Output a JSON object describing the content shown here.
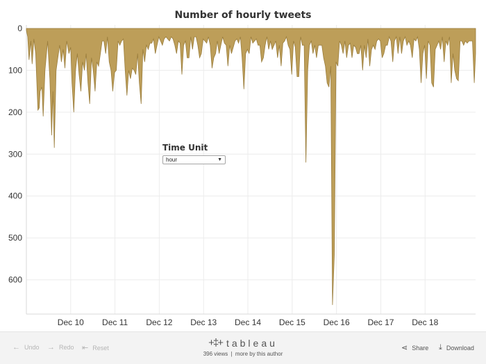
{
  "chart_data": {
    "type": "area",
    "title": "Number of hourly tweets",
    "y_axis": {
      "ticks": [
        0,
        100,
        200,
        300,
        400,
        500,
        600
      ],
      "range": [
        0,
        690
      ],
      "reversed": true
    },
    "x_axis": {
      "ticks": [
        "Dec 10",
        "Dec 11",
        "Dec 12",
        "Dec 13",
        "Dec 14",
        "Dec 15",
        "Dec 16",
        "Dec 17",
        "Dec 18"
      ],
      "unit": "hour"
    },
    "grid": true,
    "fill_color": "#bd9e59",
    "series": [
      {
        "points": [
          [
            9.0,
            5
          ],
          [
            9.03,
            20
          ],
          [
            9.06,
            75
          ],
          [
            9.1,
            30
          ],
          [
            9.13,
            85
          ],
          [
            9.17,
            25
          ],
          [
            9.21,
            60
          ],
          [
            9.26,
            195
          ],
          [
            9.29,
            190
          ],
          [
            9.31,
            150
          ],
          [
            9.35,
            140
          ],
          [
            9.38,
            210
          ],
          [
            9.42,
            100
          ],
          [
            9.48,
            30
          ],
          [
            9.53,
            120
          ],
          [
            9.57,
            255
          ],
          [
            9.6,
            150
          ],
          [
            9.63,
            285
          ],
          [
            9.67,
            100
          ],
          [
            9.71,
            70
          ],
          [
            9.75,
            40
          ],
          [
            9.79,
            80
          ],
          [
            9.83,
            50
          ],
          [
            9.87,
            95
          ],
          [
            9.91,
            30
          ],
          [
            9.96,
            60
          ],
          [
            10.0,
            45
          ],
          [
            10.03,
            130
          ],
          [
            10.07,
            200
          ],
          [
            10.11,
            100
          ],
          [
            10.15,
            60
          ],
          [
            10.19,
            110
          ],
          [
            10.23,
            150
          ],
          [
            10.27,
            80
          ],
          [
            10.31,
            100
          ],
          [
            10.35,
            60
          ],
          [
            10.39,
            130
          ],
          [
            10.43,
            180
          ],
          [
            10.47,
            70
          ],
          [
            10.51,
            100
          ],
          [
            10.55,
            150
          ],
          [
            10.59,
            80
          ],
          [
            10.63,
            90
          ],
          [
            10.67,
            60
          ],
          [
            10.71,
            30
          ],
          [
            10.75,
            30
          ],
          [
            10.79,
            60
          ],
          [
            10.83,
            20
          ],
          [
            10.87,
            80
          ],
          [
            10.91,
            100
          ],
          [
            10.95,
            150
          ],
          [
            10.99,
            105
          ],
          [
            11.03,
            100
          ],
          [
            11.07,
            30
          ],
          [
            11.11,
            40
          ],
          [
            11.15,
            30
          ],
          [
            11.19,
            25
          ],
          [
            11.23,
            100
          ],
          [
            11.27,
            160
          ],
          [
            11.31,
            100
          ],
          [
            11.35,
            120
          ],
          [
            11.39,
            95
          ],
          [
            11.43,
            100
          ],
          [
            11.47,
            110
          ],
          [
            11.51,
            60
          ],
          [
            11.55,
            130
          ],
          [
            11.59,
            180
          ],
          [
            11.63,
            50
          ],
          [
            11.67,
            80
          ],
          [
            11.71,
            40
          ],
          [
            11.75,
            50
          ],
          [
            11.79,
            35
          ],
          [
            11.83,
            35
          ],
          [
            11.87,
            25
          ],
          [
            11.91,
            60
          ],
          [
            11.95,
            40
          ],
          [
            11.99,
            20
          ],
          [
            12.03,
            30
          ],
          [
            12.07,
            40
          ],
          [
            12.11,
            25
          ],
          [
            12.15,
            20
          ],
          [
            12.19,
            25
          ],
          [
            12.23,
            30
          ],
          [
            12.27,
            20
          ],
          [
            12.31,
            25
          ],
          [
            12.35,
            40
          ],
          [
            12.39,
            60
          ],
          [
            12.43,
            30
          ],
          [
            12.47,
            35
          ],
          [
            12.51,
            110
          ],
          [
            12.55,
            40
          ],
          [
            12.59,
            30
          ],
          [
            12.63,
            70
          ],
          [
            12.67,
            70
          ],
          [
            12.71,
            20
          ],
          [
            12.75,
            50
          ],
          [
            12.79,
            20
          ],
          [
            12.83,
            20
          ],
          [
            12.87,
            40
          ],
          [
            12.91,
            70
          ],
          [
            12.95,
            60
          ],
          [
            12.99,
            25
          ],
          [
            13.03,
            30
          ],
          [
            13.07,
            35
          ],
          [
            13.11,
            20
          ],
          [
            13.15,
            40
          ],
          [
            13.19,
            95
          ],
          [
            13.23,
            70
          ],
          [
            13.27,
            60
          ],
          [
            13.31,
            30
          ],
          [
            13.35,
            60
          ],
          [
            13.39,
            40
          ],
          [
            13.43,
            20
          ],
          [
            13.47,
            35
          ],
          [
            13.51,
            40
          ],
          [
            13.55,
            90
          ],
          [
            13.59,
            40
          ],
          [
            13.63,
            60
          ],
          [
            13.67,
            45
          ],
          [
            13.71,
            30
          ],
          [
            13.75,
            25
          ],
          [
            13.79,
            35
          ],
          [
            13.83,
            20
          ],
          [
            13.87,
            70
          ],
          [
            13.91,
            145
          ],
          [
            13.95,
            60
          ],
          [
            13.99,
            50
          ],
          [
            14.03,
            60
          ],
          [
            14.07,
            20
          ],
          [
            14.11,
            35
          ],
          [
            14.15,
            30
          ],
          [
            14.19,
            25
          ],
          [
            14.23,
            40
          ],
          [
            14.27,
            40
          ],
          [
            14.31,
            80
          ],
          [
            14.35,
            70
          ],
          [
            14.39,
            40
          ],
          [
            14.43,
            20
          ],
          [
            14.47,
            50
          ],
          [
            14.51,
            30
          ],
          [
            14.55,
            50
          ],
          [
            14.59,
            40
          ],
          [
            14.63,
            30
          ],
          [
            14.67,
            70
          ],
          [
            14.71,
            40
          ],
          [
            14.75,
            90
          ],
          [
            14.79,
            35
          ],
          [
            14.83,
            30
          ],
          [
            14.87,
            20
          ],
          [
            14.91,
            40
          ],
          [
            14.95,
            50
          ],
          [
            14.99,
            110
          ],
          [
            15.03,
            30
          ],
          [
            15.07,
            45
          ],
          [
            15.11,
            115
          ],
          [
            15.15,
            115
          ],
          [
            15.19,
            20
          ],
          [
            15.23,
            40
          ],
          [
            15.27,
            40
          ],
          [
            15.31,
            320
          ],
          [
            15.35,
            100
          ],
          [
            15.39,
            40
          ],
          [
            15.43,
            30
          ],
          [
            15.47,
            60
          ],
          [
            15.51,
            40
          ],
          [
            15.55,
            70
          ],
          [
            15.59,
            40
          ],
          [
            15.63,
            40
          ],
          [
            15.67,
            40
          ],
          [
            15.71,
            70
          ],
          [
            15.75,
            90
          ],
          [
            15.79,
            130
          ],
          [
            15.83,
            140
          ],
          [
            15.87,
            90
          ],
          [
            15.91,
            660
          ],
          [
            15.95,
            540
          ],
          [
            15.99,
            80
          ],
          [
            16.03,
            90
          ],
          [
            16.07,
            30
          ],
          [
            16.11,
            40
          ],
          [
            16.15,
            60
          ],
          [
            16.19,
            30
          ],
          [
            16.23,
            70
          ],
          [
            16.27,
            40
          ],
          [
            16.31,
            35
          ],
          [
            16.35,
            70
          ],
          [
            16.39,
            40
          ],
          [
            16.43,
            45
          ],
          [
            16.47,
            60
          ],
          [
            16.51,
            60
          ],
          [
            16.55,
            40
          ],
          [
            16.59,
            100
          ],
          [
            16.63,
            40
          ],
          [
            16.67,
            70
          ],
          [
            16.71,
            25
          ],
          [
            16.75,
            90
          ],
          [
            16.79,
            50
          ],
          [
            16.83,
            40
          ],
          [
            16.87,
            50
          ],
          [
            16.91,
            30
          ],
          [
            16.95,
            25
          ],
          [
            16.99,
            30
          ],
          [
            17.03,
            70
          ],
          [
            17.07,
            60
          ],
          [
            17.11,
            40
          ],
          [
            17.15,
            40
          ],
          [
            17.19,
            20
          ],
          [
            17.23,
            30
          ],
          [
            17.27,
            80
          ],
          [
            17.31,
            30
          ],
          [
            17.35,
            20
          ],
          [
            17.39,
            60
          ],
          [
            17.43,
            20
          ],
          [
            17.47,
            60
          ],
          [
            17.51,
            30
          ],
          [
            17.55,
            20
          ],
          [
            17.59,
            40
          ],
          [
            17.63,
            30
          ],
          [
            17.67,
            40
          ],
          [
            17.71,
            70
          ],
          [
            17.75,
            25
          ],
          [
            17.79,
            30
          ],
          [
            17.83,
            20
          ],
          [
            17.87,
            50
          ],
          [
            17.91,
            130
          ],
          [
            17.95,
            60
          ],
          [
            17.99,
            40
          ],
          [
            18.03,
            120
          ],
          [
            18.07,
            30
          ],
          [
            18.11,
            40
          ],
          [
            18.15,
            130
          ],
          [
            18.19,
            140
          ],
          [
            18.23,
            50
          ],
          [
            18.27,
            40
          ],
          [
            18.31,
            30
          ],
          [
            18.35,
            50
          ],
          [
            18.39,
            20
          ],
          [
            18.43,
            80
          ],
          [
            18.47,
            30
          ],
          [
            18.51,
            40
          ],
          [
            18.55,
            20
          ],
          [
            18.59,
            130
          ],
          [
            18.63,
            60
          ],
          [
            18.67,
            100
          ],
          [
            18.71,
            120
          ],
          [
            18.75,
            125
          ],
          [
            18.79,
            30
          ],
          [
            18.83,
            30
          ],
          [
            18.87,
            40
          ],
          [
            18.91,
            30
          ],
          [
            18.95,
            35
          ],
          [
            18.99,
            30
          ],
          [
            19.03,
            30
          ],
          [
            19.07,
            30
          ],
          [
            19.11,
            130
          ],
          [
            19.14,
            60
          ]
        ]
      }
    ]
  },
  "filter": {
    "label": "Time Unit",
    "value": "hour"
  },
  "toolbar": {
    "undo": "Undo",
    "redo": "Redo",
    "reset": "Reset",
    "share": "Share",
    "download": "Download",
    "brand": "tableau",
    "views": "396 views",
    "separator": "|",
    "author": "more by this author"
  },
  "icons": {
    "undo": "arrow-left-icon",
    "redo": "arrow-right-icon",
    "reset": "reset-icon",
    "share": "share-icon",
    "download": "download-icon",
    "logo": "tableau-logo-icon"
  }
}
